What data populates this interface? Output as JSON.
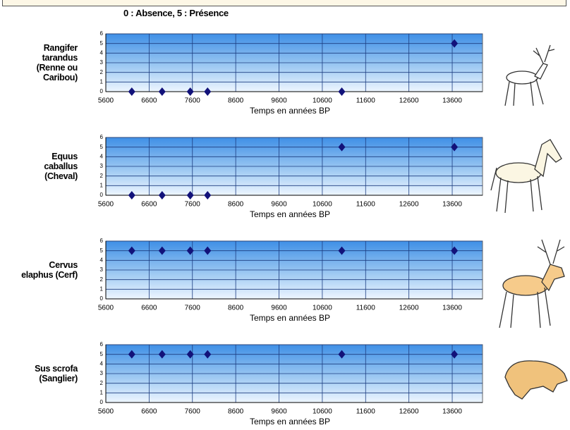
{
  "note": "0 : Absence, 5 : Présence",
  "chart_data": [
    {
      "type": "scatter",
      "title": "Rangifer\ntarandus\n(Renne ou\nCaribou)",
      "x_label": "Temps en années BP",
      "x": [
        6200,
        6900,
        7550,
        7950,
        11050,
        13650
      ],
      "values": [
        0,
        0,
        0,
        0,
        0,
        5
      ],
      "color": "#12127a",
      "xlim": [
        5600,
        14300
      ],
      "xticks": [
        5600,
        6600,
        7600,
        8600,
        9600,
        10600,
        11600,
        12600,
        13600
      ],
      "ylim": [
        0,
        6
      ],
      "yticks": [
        0,
        1,
        2,
        3,
        4,
        5,
        6
      ],
      "grid": true
    },
    {
      "type": "scatter",
      "title": "Equus\ncaballus\n(Cheval)",
      "x_label": "Temps en années BP",
      "x": [
        6200,
        6900,
        7550,
        7950,
        11050,
        13650
      ],
      "values": [
        0,
        0,
        0,
        0,
        5,
        5
      ],
      "color": "#12127a",
      "xlim": [
        5600,
        14300
      ],
      "xticks": [
        5600,
        6600,
        7600,
        8600,
        9600,
        10600,
        11600,
        12600,
        13600
      ],
      "ylim": [
        0,
        6
      ],
      "yticks": [
        0,
        1,
        2,
        3,
        4,
        5,
        6
      ],
      "grid": true
    },
    {
      "type": "scatter",
      "title": "Cervus\nelaphus (Cerf)",
      "x_label": "Temps en années BP",
      "x": [
        6200,
        6900,
        7550,
        7950,
        11050,
        13650
      ],
      "values": [
        5,
        5,
        5,
        5,
        5,
        5
      ],
      "color": "#12127a",
      "xlim": [
        5600,
        14300
      ],
      "xticks": [
        5600,
        6600,
        7600,
        8600,
        9600,
        10600,
        11600,
        12600,
        13600
      ],
      "ylim": [
        0,
        6
      ],
      "yticks": [
        0,
        1,
        2,
        3,
        4,
        5,
        6
      ],
      "grid": true
    },
    {
      "type": "scatter",
      "title": "Sus scrofa\n(Sanglier)",
      "x_label": "Temps en années BP",
      "x": [
        6200,
        6900,
        7550,
        7950,
        11050,
        13650
      ],
      "values": [
        5,
        5,
        5,
        5,
        5,
        5
      ],
      "color": "#12127a",
      "xlim": [
        5600,
        14300
      ],
      "xticks": [
        5600,
        6600,
        7600,
        8600,
        9600,
        10600,
        11600,
        12600,
        13600
      ],
      "ylim": [
        0,
        6
      ],
      "yticks": [
        0,
        1,
        2,
        3,
        4,
        5,
        6
      ],
      "grid": true
    }
  ]
}
